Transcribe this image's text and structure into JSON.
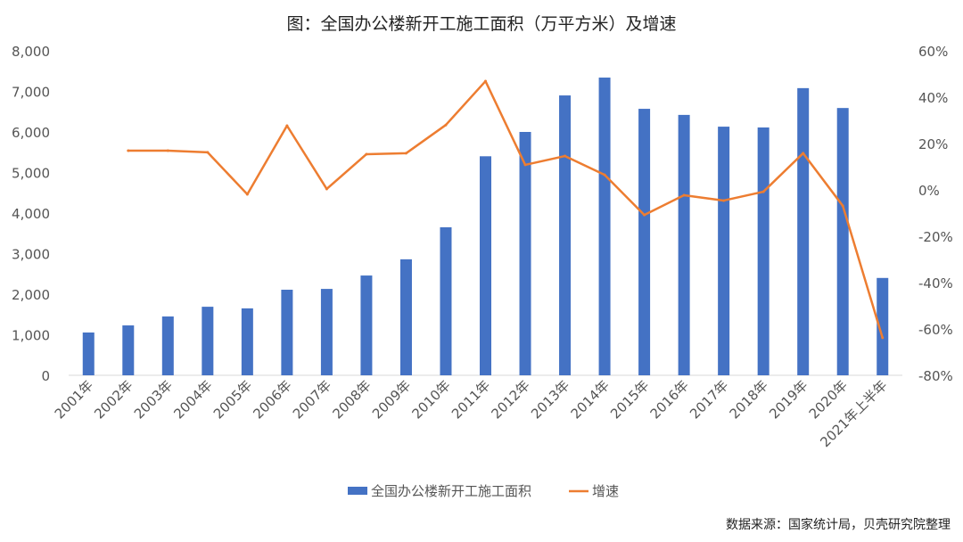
{
  "chart_data": {
    "type": "bar+line",
    "title": "图：全国办公楼新开工施工面积（万平方米）及增速",
    "categories": [
      "2001年",
      "2002年",
      "2003年",
      "2004年",
      "2005年",
      "2006年",
      "2007年",
      "2008年",
      "2009年",
      "2010年",
      "2011年",
      "2012年",
      "2013年",
      "2014年",
      "2015年",
      "2016年",
      "2017年",
      "2018年",
      "2019年",
      "2020年",
      "2021年上半年"
    ],
    "series": [
      {
        "name": "全国办公楼新开工施工面积",
        "type": "bar",
        "axis": "left",
        "color": "#4472C4",
        "values": [
          1055,
          1230,
          1450,
          1690,
          1650,
          2110,
          2130,
          2460,
          2860,
          3650,
          5400,
          6000,
          6900,
          7340,
          6570,
          6420,
          6130,
          6110,
          7080,
          6590,
          2400
        ]
      },
      {
        "name": "增速",
        "type": "line",
        "axis": "right",
        "color": "#ED7D31",
        "values": [
          null,
          16.9,
          16.9,
          16.2,
          -1.9,
          27.7,
          0.4,
          15.4,
          15.8,
          28.0,
          46.9,
          10.8,
          14.6,
          6.5,
          -10.8,
          -2.3,
          -4.6,
          -0.8,
          15.8,
          -6.9,
          -63.8
        ]
      }
    ],
    "left_axis": {
      "ylim": [
        0,
        8000
      ],
      "ticks": [
        "0",
        "1,000",
        "2,000",
        "3,000",
        "4,000",
        "5,000",
        "6,000",
        "7,000",
        "8,000"
      ]
    },
    "right_axis": {
      "ylim": [
        -80,
        60
      ],
      "ticks": [
        "-80%",
        "-60%",
        "-40%",
        "-20%",
        "0%",
        "20%",
        "40%",
        "60%"
      ]
    },
    "grid": false,
    "legend": "bottom-center"
  },
  "source": "数据来源：国家统计局，贝壳研究院整理"
}
